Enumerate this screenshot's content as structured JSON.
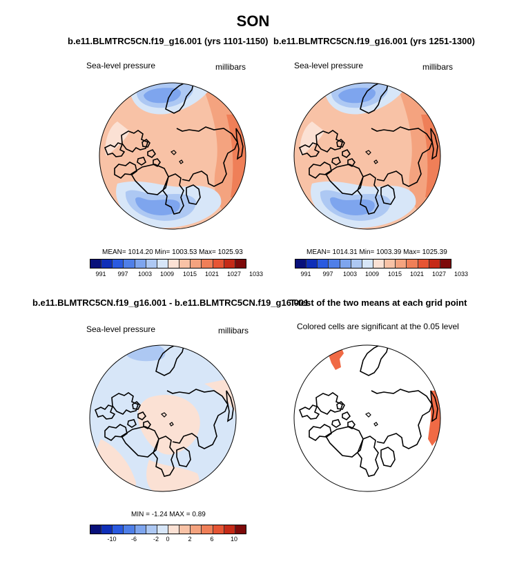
{
  "title": "SON",
  "panels": [
    {
      "title": "b.e11.BLMTRC5CN.f19_g16.001 (yrs 1101-1150)",
      "var": "Sea-level pressure",
      "units": "millibars",
      "stats": "MEAN= 1014.20  Min= 1003.53  Max= 1025.93",
      "ticks": [
        "991",
        "997",
        "1003",
        "1009",
        "1015",
        "1021",
        "1027",
        "1033"
      ]
    },
    {
      "title": "b.e11.BLMTRC5CN.f19_g16.001 (yrs 1251-1300)",
      "var": "Sea-level pressure",
      "units": "millibars",
      "stats": "MEAN= 1014.31  Min= 1003.39  Max= 1025.39",
      "ticks": [
        "991",
        "997",
        "1003",
        "1009",
        "1015",
        "1021",
        "1027",
        "1033"
      ]
    },
    {
      "title": "b.e11.BLMTRC5CN.f19_g16.001 - b.e11.BLMTRC5CN.f19_g16.001",
      "var": "Sea-level pressure",
      "units": "millibars",
      "stats": "MIN =  -1.24 MAX =   0.89",
      "ticks": [
        "-10",
        "-6",
        "-2",
        "0",
        "2",
        "6",
        "10"
      ]
    },
    {
      "title": "T-test of the two means at each grid point",
      "subtitle": "Colored cells are significant at the 0.05 level"
    }
  ],
  "colors": {
    "abs_scale": [
      "#08107a",
      "#0f2fb8",
      "#2a5ae0",
      "#4f7fe8",
      "#7ea5ee",
      "#adc8f3",
      "#d7e6f8",
      "#fbe1d4",
      "#f8c2a6",
      "#f4a37f",
      "#ef7f58",
      "#e65534",
      "#c52a17",
      "#7d0a0a"
    ],
    "diff_scale": [
      "#08107a",
      "#0f2fb8",
      "#2a5ae0",
      "#4f7fe8",
      "#7ea5ee",
      "#adc8f3",
      "#d7e6f8",
      "#fbe1d4",
      "#f8c2a6",
      "#f4a37f",
      "#ef7f58",
      "#e65534",
      "#c52a17",
      "#7d0a0a"
    ],
    "sig": "#f06a45"
  }
}
